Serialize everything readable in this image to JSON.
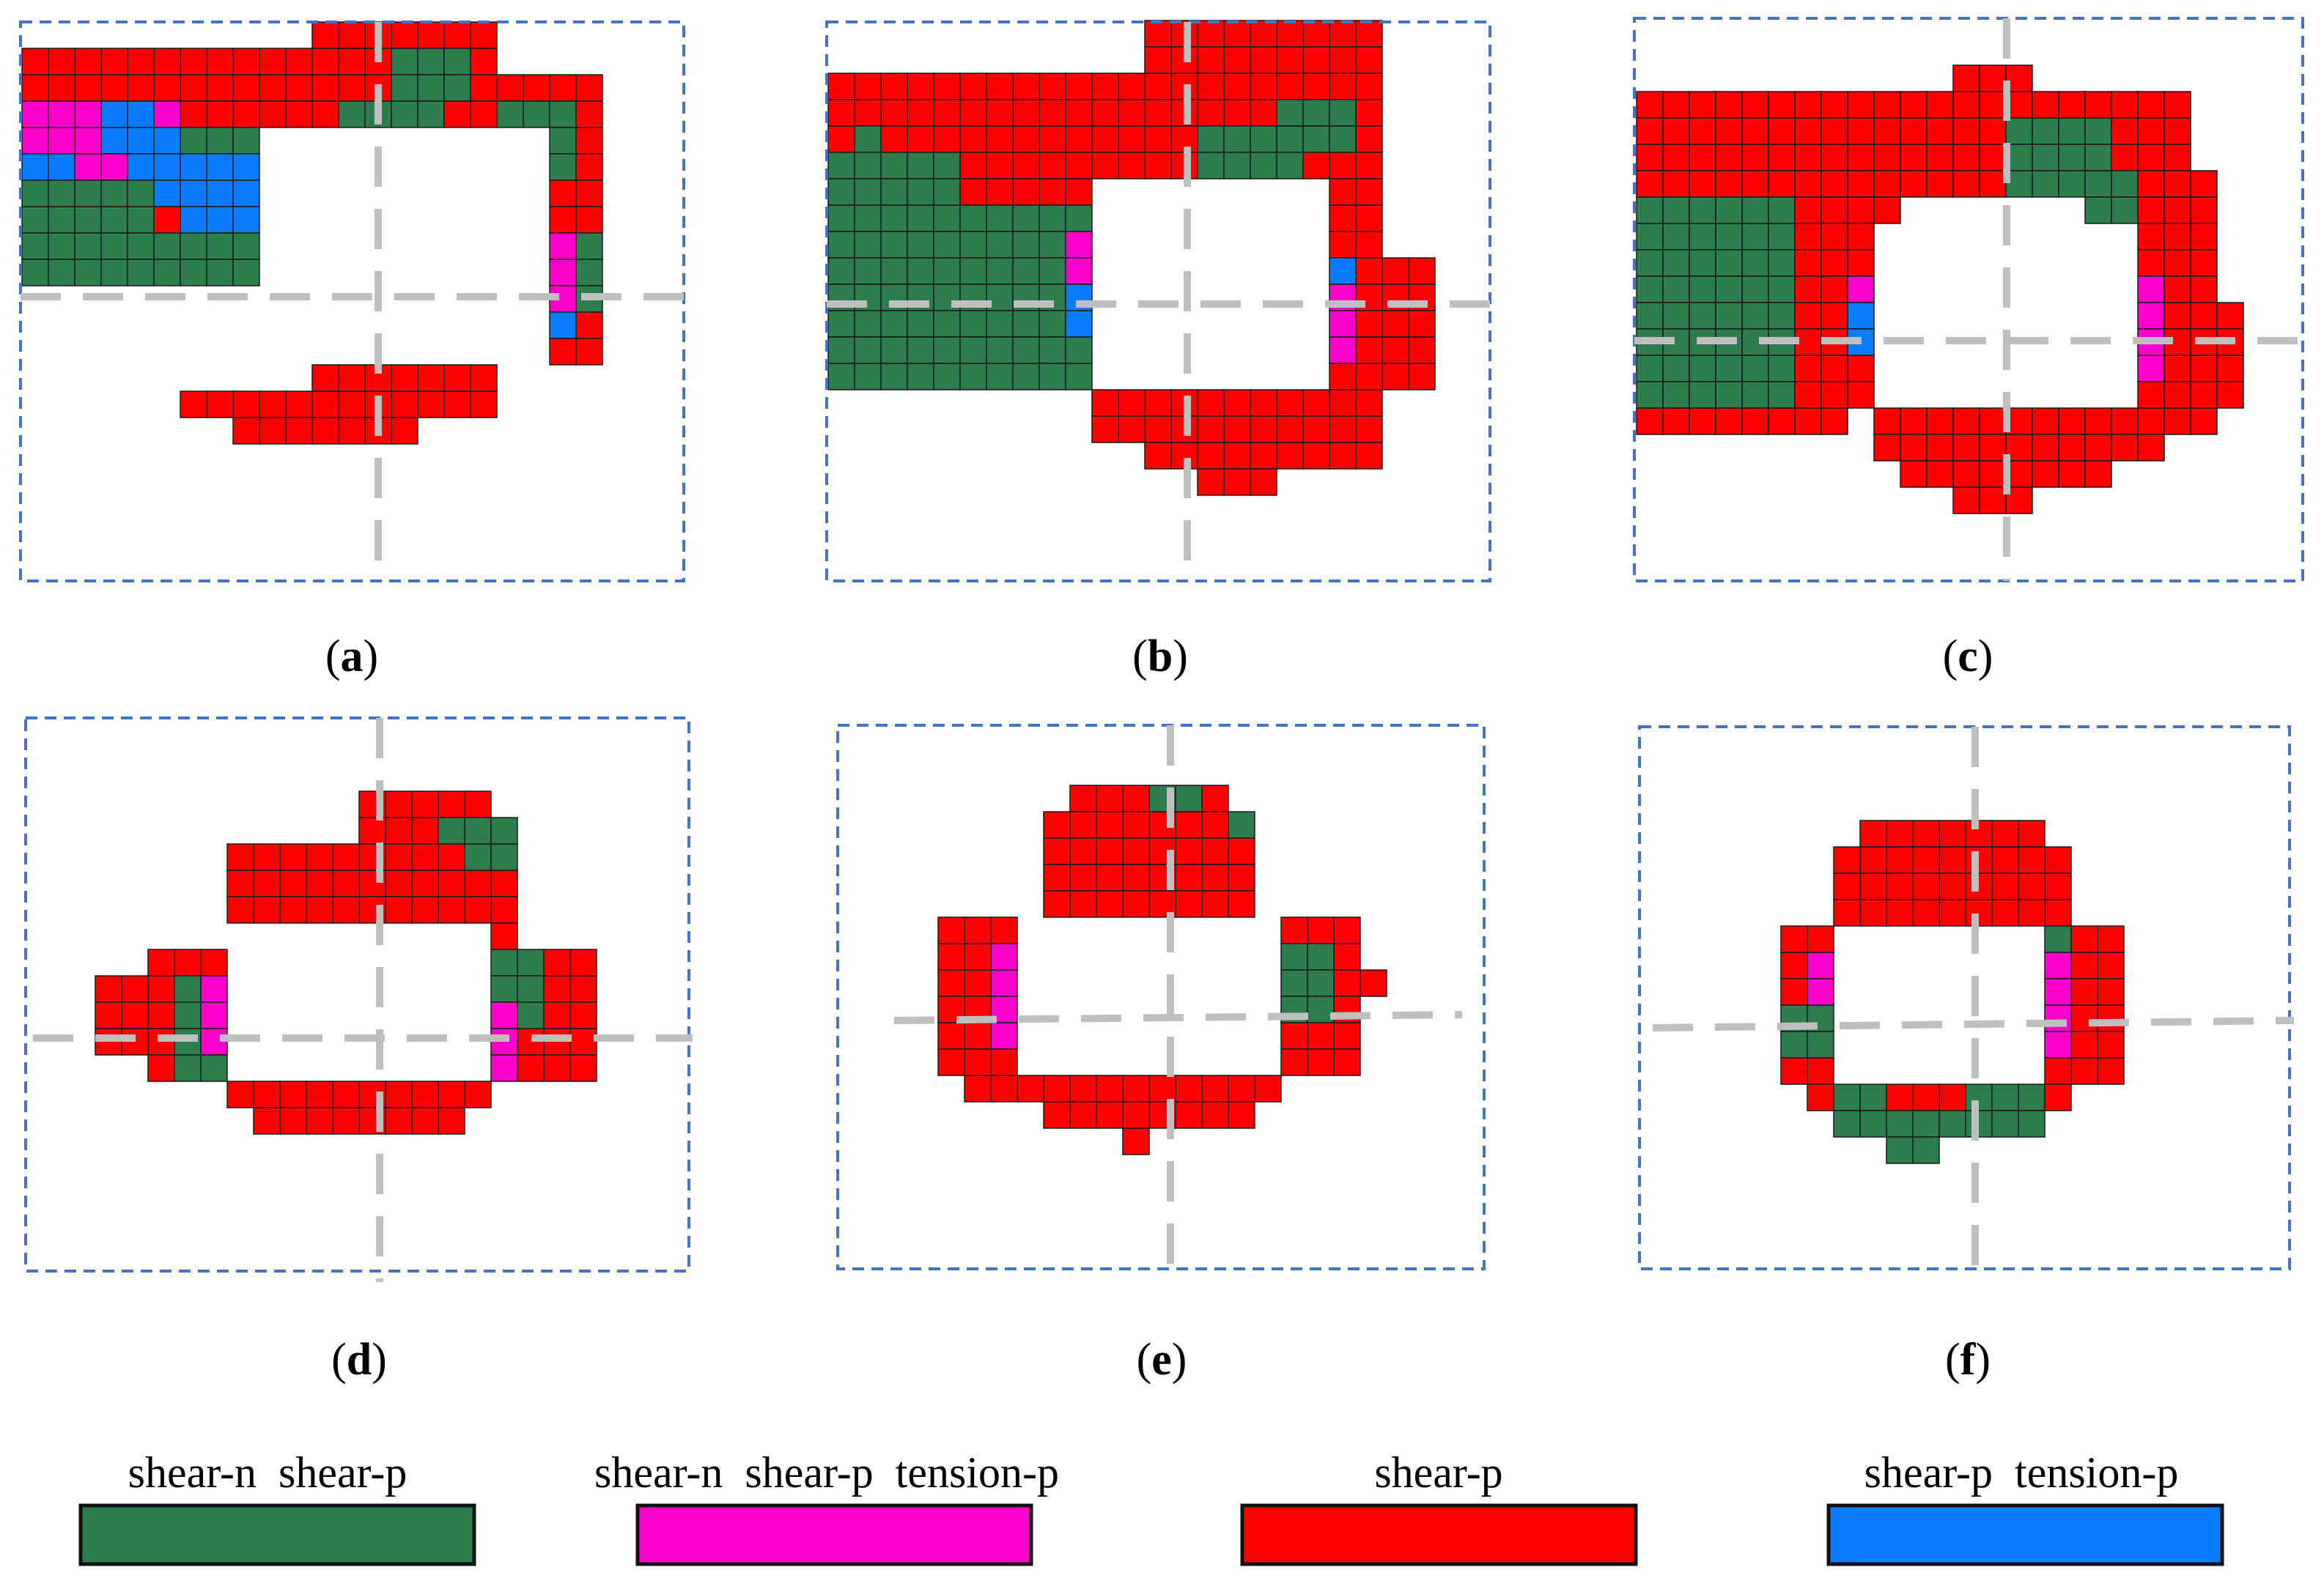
{
  "colors": {
    "shear_n_shear_p": "#2e7d4f",
    "shear_n_shear_p_tension_p": "#ff00cc",
    "shear_p": "#ff0000",
    "shear_p_tension_p": "#0a7cff",
    "frame": "#4472c4",
    "axis": "#bfbfbf",
    "grid": "#1a1a1a"
  },
  "panels": [
    {
      "id": "a",
      "caption": "(a)",
      "letter": "a"
    },
    {
      "id": "b",
      "caption": "(b)",
      "letter": "b"
    },
    {
      "id": "c",
      "caption": "(c)",
      "letter": "c"
    },
    {
      "id": "d",
      "caption": "(d)",
      "letter": "d"
    },
    {
      "id": "e",
      "caption": "(e)",
      "letter": "e"
    },
    {
      "id": "f",
      "caption": "(f)",
      "letter": "f"
    }
  ],
  "legend": [
    {
      "label": "shear-n  shear-p",
      "color": "#2e7d4f"
    },
    {
      "label": "shear-n  shear-p  tension-p",
      "color": "#ff00cc"
    },
    {
      "label": "shear-p",
      "color": "#ff0000"
    },
    {
      "label": "shear-p  tension-p",
      "color": "#0a7cff"
    }
  ]
}
